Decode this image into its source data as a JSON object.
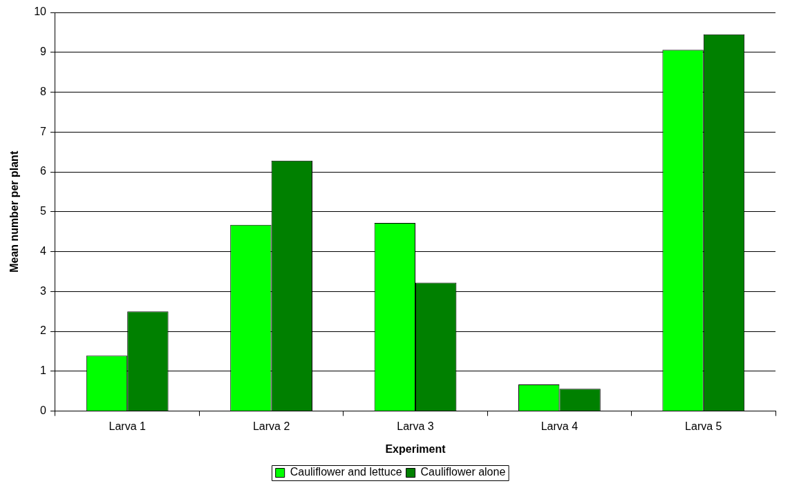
{
  "chart_data": {
    "type": "bar",
    "xlabel": "Experiment",
    "ylabel": "Mean number per plant",
    "categories": [
      "Larva 1",
      "Larva 2",
      "Larva 3",
      "Larva 4",
      "Larva 5"
    ],
    "series": [
      {
        "name": "Cauliflower and lettuce",
        "color": "#00ff00",
        "values": [
          1.39,
          4.67,
          4.72,
          0.67,
          9.06
        ]
      },
      {
        "name": "Cauliflower alone",
        "color": "#008000",
        "values": [
          2.5,
          6.28,
          3.22,
          0.56,
          9.45
        ]
      }
    ],
    "ylim": [
      0,
      10
    ],
    "yticks": [
      0,
      1,
      2,
      3,
      4,
      5,
      6,
      7,
      8,
      9,
      10
    ],
    "grid": "y",
    "legend": "bottom"
  }
}
